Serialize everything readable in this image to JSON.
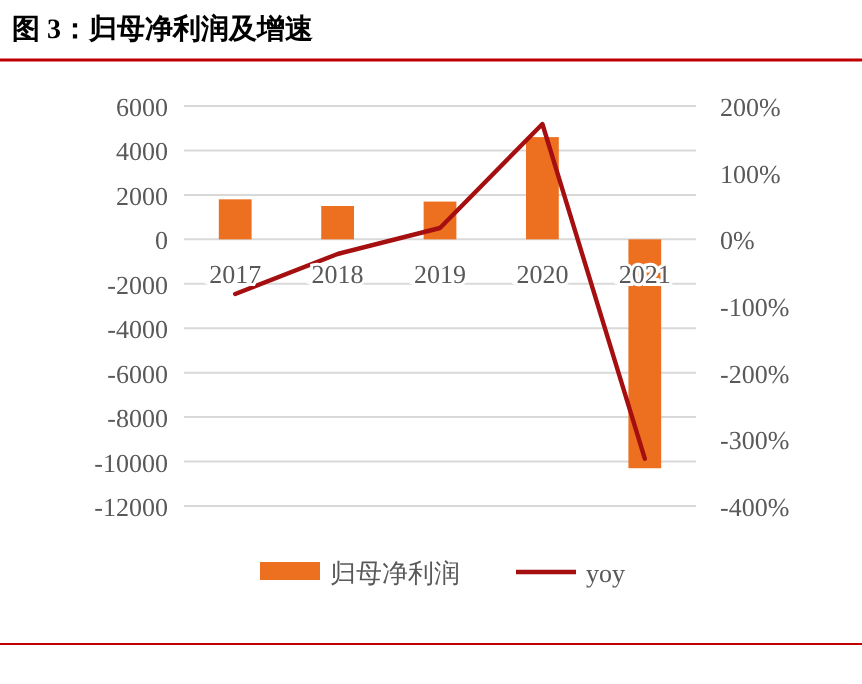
{
  "chart_data": {
    "type": "bar",
    "title": "图 3：归母净利润及增速",
    "categories": [
      "2017",
      "2018",
      "2019",
      "2020",
      "2021"
    ],
    "series": [
      {
        "name": "归母净利润",
        "color": "#ed7020",
        "values": [
          1800,
          1500,
          1700,
          4600,
          -10300
        ]
      },
      {
        "name": "yoy",
        "type": "line",
        "axis": "y2",
        "color": "#a50f0f",
        "values": [
          -82,
          -22,
          17,
          173,
          -329
        ]
      }
    ],
    "ylim": [
      -12000,
      6000
    ],
    "yticks": [
      -12000,
      -10000,
      -8000,
      -6000,
      -4000,
      -2000,
      0,
      2000,
      4000,
      6000
    ],
    "y2lim": [
      -400,
      200
    ],
    "y2ticks": [
      {
        "value": -400,
        "label": "-400%"
      },
      {
        "value": -300,
        "label": "-300%"
      },
      {
        "value": -200,
        "label": "-200%"
      },
      {
        "value": -100,
        "label": "-100%"
      },
      {
        "value": 0,
        "label": "0%"
      },
      {
        "value": 100,
        "label": "100%"
      },
      {
        "value": 200,
        "label": "200%"
      }
    ],
    "grid": "y",
    "legend": "bottom"
  }
}
